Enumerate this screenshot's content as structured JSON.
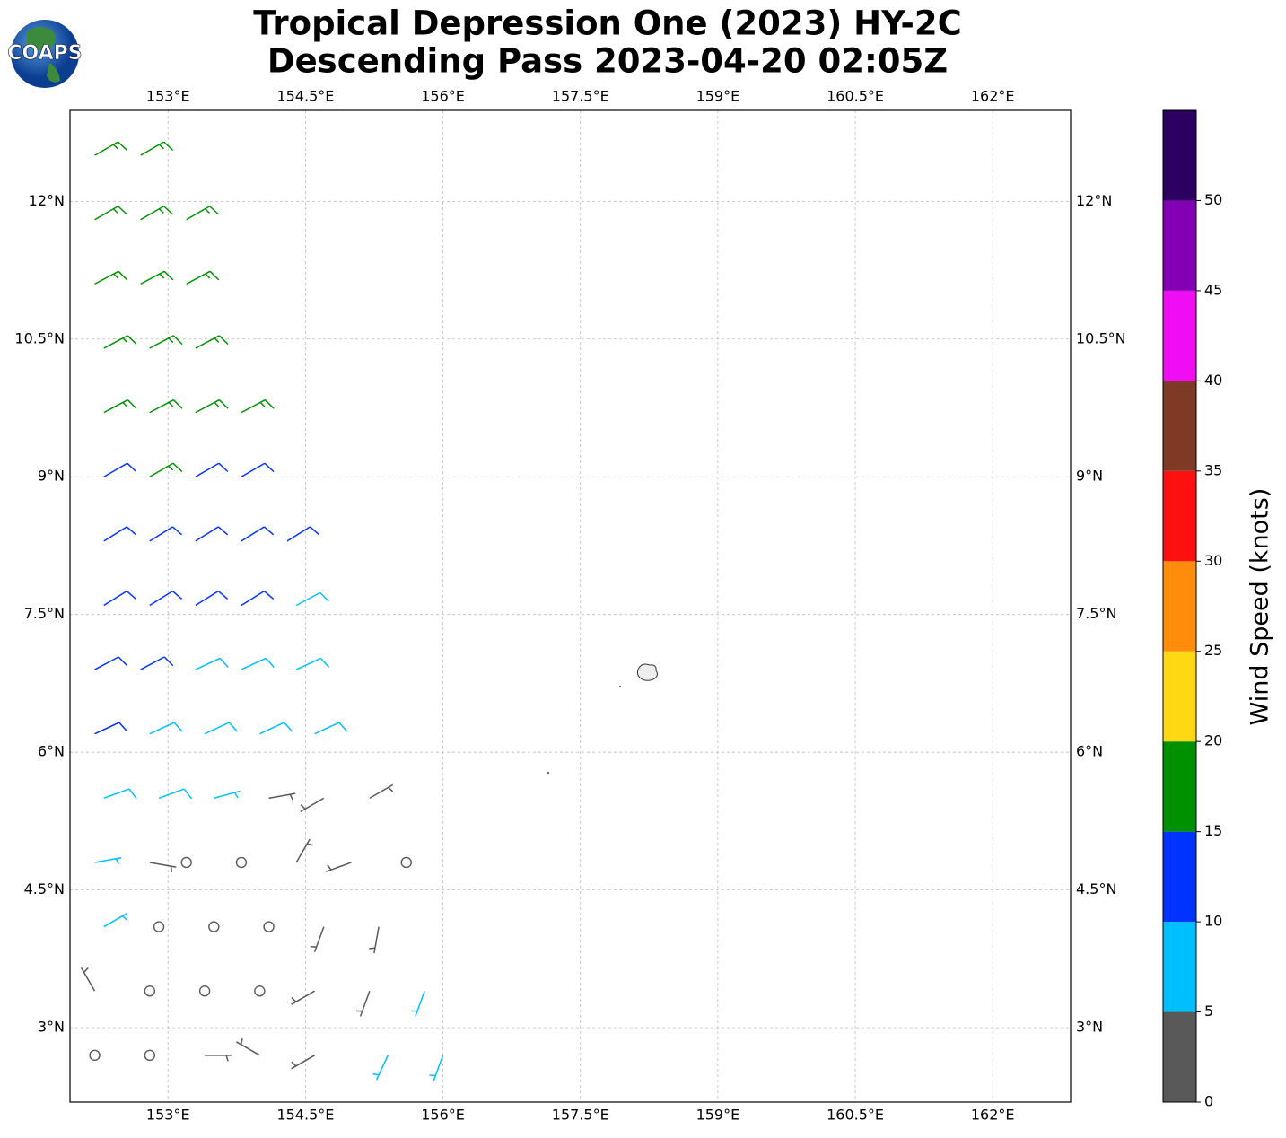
{
  "chart_data": {
    "type": "barbs",
    "logo_text": "COAPS",
    "title": "Tropical Depression One (2023) HY-2C",
    "subtitle": "Descending Pass 2023-04-20 02:05Z",
    "xlim": [
      151.93,
      162.85
    ],
    "ylim": [
      2.19,
      12.99
    ],
    "xticks": [
      {
        "value": 153,
        "label": "153°E"
      },
      {
        "value": 154.5,
        "label": "154.5°E"
      },
      {
        "value": 156,
        "label": "156°E"
      },
      {
        "value": 157.5,
        "label": "157.5°E"
      },
      {
        "value": 159,
        "label": "159°E"
      },
      {
        "value": 160.5,
        "label": "160.5°E"
      },
      {
        "value": 162,
        "label": "162°E"
      }
    ],
    "yticks": [
      {
        "value": 3,
        "label": "3°N"
      },
      {
        "value": 4.5,
        "label": "4.5°N"
      },
      {
        "value": 6,
        "label": "6°N"
      },
      {
        "value": 7.5,
        "label": "7.5°N"
      },
      {
        "value": 9,
        "label": "9°N"
      },
      {
        "value": 10.5,
        "label": "10.5°N"
      },
      {
        "value": 12,
        "label": "12°N"
      }
    ],
    "grid": true,
    "barbs": {
      "lon": [
        152.2,
        152.7,
        152.2,
        152.7,
        153.2,
        152.2,
        152.7,
        153.2,
        152.3,
        152.8,
        153.3,
        152.3,
        152.8,
        153.3,
        153.8,
        152.3,
        152.8,
        153.3,
        153.8,
        152.3,
        152.8,
        153.3,
        153.8,
        154.3,
        152.3,
        152.8,
        153.3,
        153.8,
        154.4,
        152.2,
        152.7,
        153.3,
        153.8,
        154.4,
        152.2,
        152.8,
        153.4,
        154.0,
        154.6,
        152.3,
        152.9,
        153.5,
        154.1,
        154.7,
        155.2,
        152.2,
        152.8,
        153.2,
        153.8,
        154.4,
        155.0,
        155.6,
        152.3,
        152.9,
        153.5,
        154.1,
        154.7,
        155.3,
        152.2,
        152.8,
        153.4,
        154.0,
        154.6,
        155.2,
        155.8,
        152.2,
        152.8,
        153.4,
        154.0,
        154.6,
        155.4,
        156.0
      ],
      "lat": [
        12.5,
        12.5,
        11.8,
        11.8,
        11.8,
        11.1,
        11.1,
        11.1,
        10.4,
        10.4,
        10.4,
        9.7,
        9.7,
        9.7,
        9.7,
        9.0,
        9.0,
        9.0,
        9.0,
        8.3,
        8.3,
        8.3,
        8.3,
        8.3,
        7.6,
        7.6,
        7.6,
        7.6,
        7.6,
        6.9,
        6.9,
        6.9,
        6.9,
        6.9,
        6.2,
        6.2,
        6.2,
        6.2,
        6.2,
        5.5,
        5.5,
        5.5,
        5.5,
        5.5,
        5.5,
        4.8,
        4.8,
        4.8,
        4.8,
        4.8,
        4.8,
        4.8,
        4.1,
        4.1,
        4.1,
        4.1,
        4.1,
        4.1,
        3.4,
        3.4,
        3.4,
        3.4,
        3.4,
        3.4,
        3.4,
        2.7,
        2.7,
        2.7,
        2.7,
        2.7,
        2.7,
        2.7
      ],
      "speed": [
        17,
        17,
        17,
        17,
        17,
        17,
        17,
        17,
        17,
        17,
        17,
        17,
        17,
        17,
        17,
        12,
        17,
        12,
        12,
        12,
        12,
        12,
        12,
        12,
        12,
        12,
        12,
        12,
        8,
        12,
        12,
        8,
        8,
        8,
        12,
        8,
        8,
        8,
        8,
        8,
        8,
        7,
        4,
        4,
        4,
        7,
        4,
        1,
        1,
        4,
        4,
        1,
        7,
        1,
        1,
        1,
        3,
        4,
        4,
        1,
        1,
        1,
        4,
        4,
        7,
        1,
        1,
        4,
        4,
        4,
        7,
        7
      ],
      "direction": [
        60,
        60,
        60,
        60,
        60,
        62,
        62,
        62,
        62,
        62,
        62,
        62,
        62,
        62,
        62,
        60,
        60,
        60,
        60,
        58,
        58,
        58,
        58,
        58,
        58,
        58,
        58,
        58,
        62,
        62,
        62,
        65,
        65,
        65,
        65,
        65,
        65,
        65,
        65,
        70,
        70,
        75,
        80,
        240,
        60,
        80,
        100,
        0,
        0,
        30,
        250,
        0,
        60,
        0,
        0,
        0,
        200,
        190,
        330,
        0,
        0,
        0,
        240,
        200,
        200,
        0,
        0,
        90,
        300,
        240,
        205,
        200
      ]
    },
    "colorbar": {
      "label": "Wind Speed (knots)",
      "clim": [
        0,
        55
      ],
      "levels": [
        0,
        5,
        10,
        15,
        20,
        25,
        30,
        35,
        40,
        45,
        50,
        55
      ],
      "colors": [
        "#595959",
        "#00bfff",
        "#0033ff",
        "#009100",
        "#ffd814",
        "#ff8c0a",
        "#ff1010",
        "#7f3a26",
        "#ef0ef3",
        "#8400b4",
        "#2c0060"
      ],
      "ticks": [
        0,
        5,
        10,
        15,
        20,
        25,
        30,
        35,
        40,
        45,
        50
      ]
    }
  }
}
